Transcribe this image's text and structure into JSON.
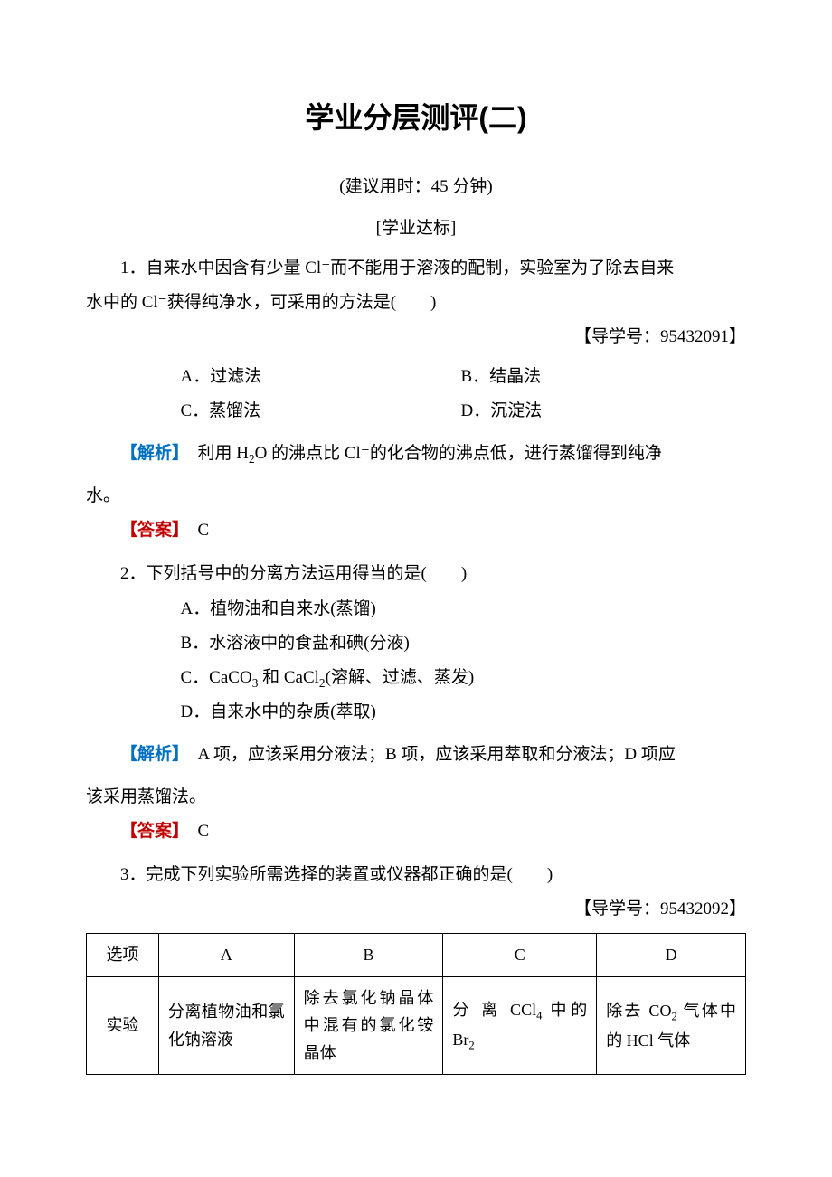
{
  "title": "学业分层测评(二)",
  "subtitle": "(建议用时：45 分钟)",
  "section_label": "[学业达标]",
  "q1": {
    "line1": "1．自来水中因含有少量 Cl⁻而不能用于溶液的配制，实验室为了除去自来",
    "line2": "水中的 Cl⁻获得纯净水，可采用的方法是(　　)",
    "guide": "【导学号：95432091】",
    "optA": "A．过滤法",
    "optB": "B．结晶法",
    "optC": "C．蒸馏法",
    "optD": "D．沉淀法",
    "analysis_label": "【解析】",
    "analysis_text1": "　利用 H",
    "analysis_text2": "O 的沸点比 Cl⁻的化合物的沸点低，进行蒸馏得到纯净",
    "analysis_text3": "水。",
    "answer_label": "【答案】",
    "answer_value": "　C"
  },
  "q2": {
    "line1": "2．下列括号中的分离方法运用得当的是(　　)",
    "optA": "A．植物油和自来水(蒸馏)",
    "optB": "B．水溶液中的食盐和碘(分液)",
    "optC_pre": "C．CaCO",
    "optC_mid": " 和 CaCl",
    "optC_post": "(溶解、过滤、蒸发)",
    "optD": "D．自来水中的杂质(萃取)",
    "analysis_label": "【解析】",
    "analysis_text1": "　A 项，应该采用分液法；B 项，应该采用萃取和分液法；D 项应",
    "analysis_text2": "该采用蒸馏法。",
    "answer_label": "【答案】",
    "answer_value": "　C"
  },
  "q3": {
    "line1": "3．完成下列实验所需选择的装置或仪器都正确的是(　　)",
    "guide": "【导学号：95432092】"
  },
  "table": {
    "header": {
      "c1": "选项",
      "c2": "A",
      "c3": "B",
      "c4": "C",
      "c5": "D"
    },
    "row1": {
      "c1": "实验",
      "c2": "分离植物油和氯化钠溶液",
      "c3": "除去氯化钠晶体中混有的氯化铵晶体",
      "c4_pre": "分 离 CCl",
      "c4_mid": " 中的 Br",
      "c5_pre": "除去 CO",
      "c5_mid": " 气体中的 HCl 气体"
    }
  },
  "styling": {
    "text_color": "#000000",
    "analysis_color": "#0070c0",
    "answer_color": "#c00000",
    "background_color": "#ffffff",
    "body_fontsize": 19,
    "title_fontsize": 32,
    "table_border_color": "#000000"
  }
}
